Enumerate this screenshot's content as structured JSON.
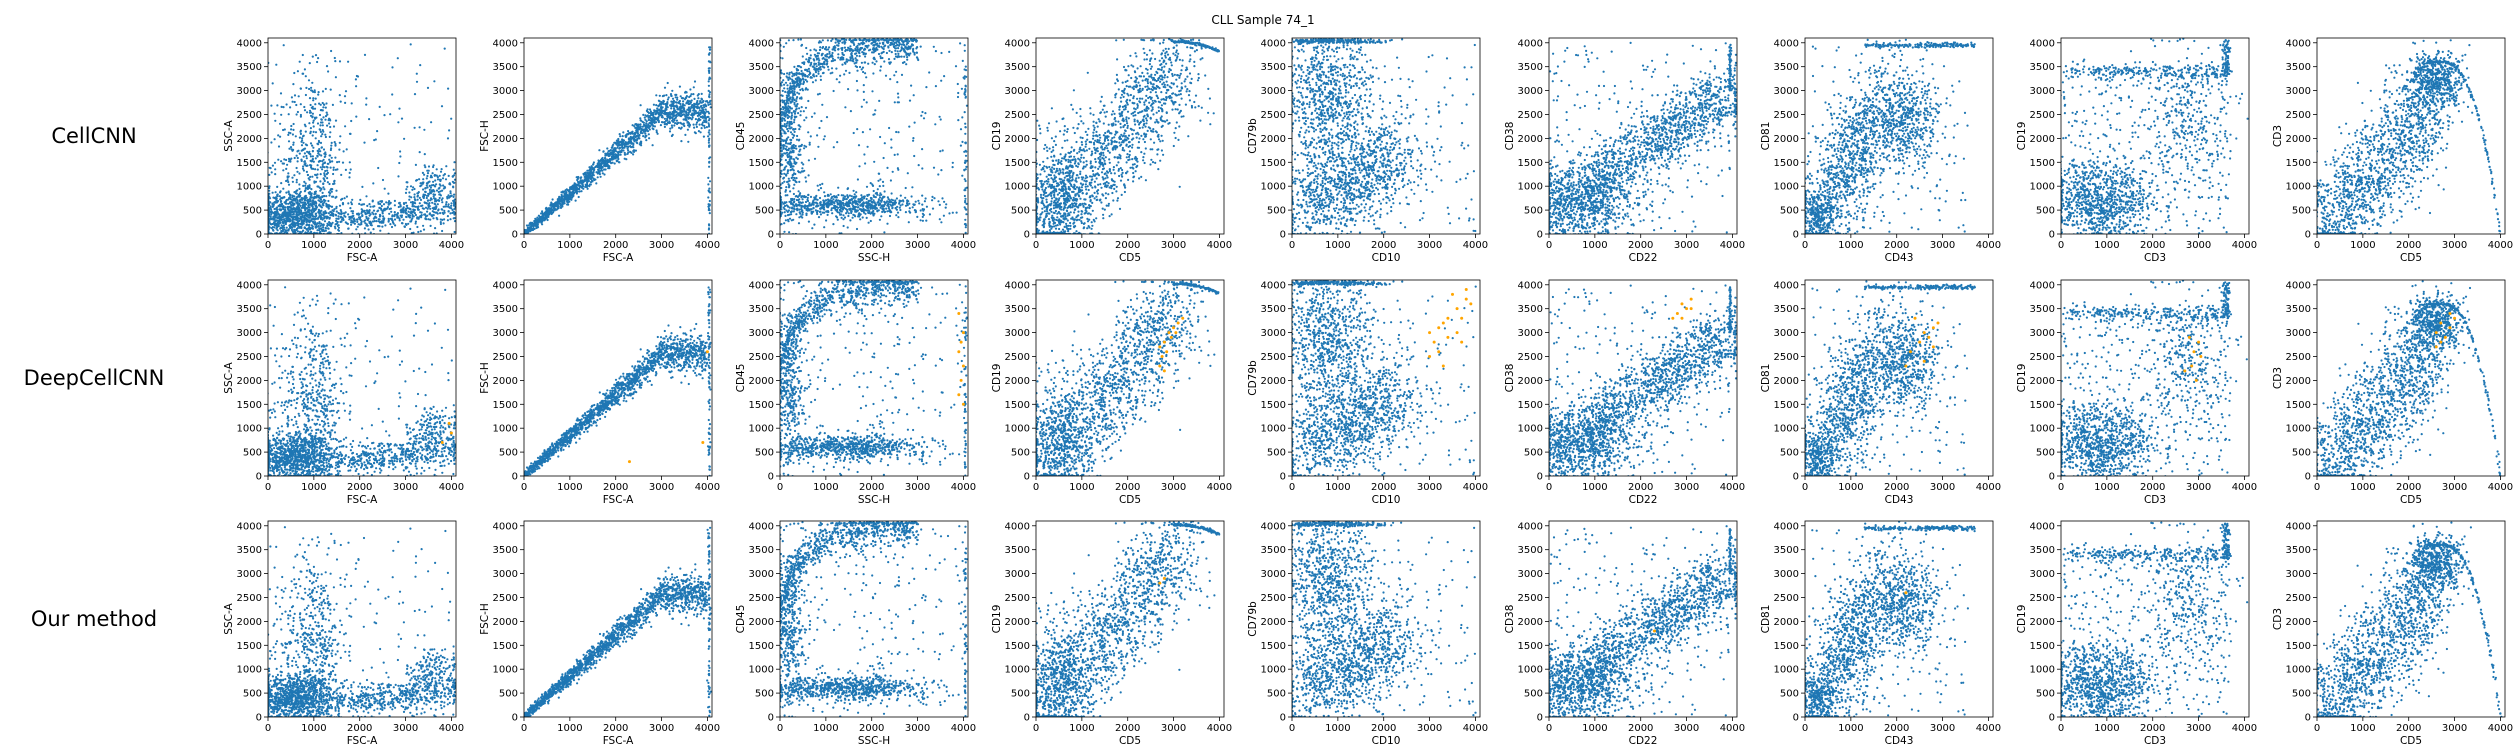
{
  "title": "CLL Sample 74_1",
  "row_labels": [
    "CellCNN",
    "DeepCellCNN",
    "Our method"
  ],
  "colors": {
    "points": "#1f77b4",
    "highlight": "#ffa500"
  },
  "chart_data": {
    "type": "scatter",
    "grid": false,
    "axis_range": [
      0,
      4100
    ],
    "x_ticks": [
      0,
      1000,
      2000,
      3000,
      4000
    ],
    "y_ticks": [
      0,
      500,
      1000,
      1500,
      2000,
      2500,
      3000,
      3500,
      4000
    ],
    "panels": [
      {
        "xlabel": "FSC-A",
        "ylabel": "SSC-A",
        "pattern": "fsc-ssc"
      },
      {
        "xlabel": "FSC-A",
        "ylabel": "FSC-H",
        "pattern": "diagonal"
      },
      {
        "xlabel": "SSC-H",
        "ylabel": "CD45",
        "pattern": "ssc-cd45"
      },
      {
        "xlabel": "CD5",
        "ylabel": "CD19",
        "pattern": "cd5-cd19"
      },
      {
        "xlabel": "CD10",
        "ylabel": "CD79b",
        "pattern": "cd10-cd79b"
      },
      {
        "xlabel": "CD22",
        "ylabel": "CD38",
        "pattern": "cd22-cd38"
      },
      {
        "xlabel": "CD43",
        "ylabel": "CD81",
        "pattern": "cd43-cd81"
      },
      {
        "xlabel": "CD3",
        "ylabel": "CD19",
        "pattern": "cd3-cd19"
      },
      {
        "xlabel": "CD5",
        "ylabel": "CD3",
        "pattern": "cd5-cd3"
      }
    ],
    "highlighted_cells": [
      [],
      [
        {
          "panel": 0,
          "points": [
            [
              4000,
              900
            ],
            [
              3950,
              1100
            ],
            [
              3800,
              700
            ]
          ]
        },
        {
          "panel": 1,
          "points": [
            [
              2300,
              300
            ],
            [
              3900,
              700
            ],
            [
              4000,
              2600
            ]
          ]
        },
        {
          "panel": 2,
          "points": [
            [
              3900,
              3400
            ],
            [
              4000,
              3000
            ],
            [
              3950,
              2800
            ],
            [
              3900,
              2600
            ],
            [
              4000,
              2300
            ],
            [
              3950,
              2000
            ],
            [
              3900,
              1700
            ],
            [
              4000,
              1500
            ]
          ]
        },
        {
          "panel": 3,
          "points": [
            [
              2700,
              2700
            ],
            [
              2800,
              2800
            ],
            [
              2750,
              2500
            ],
            [
              2900,
              3000
            ],
            [
              3000,
              3100
            ],
            [
              3100,
              3200
            ],
            [
              2850,
              2600
            ],
            [
              2950,
              2900
            ],
            [
              3050,
              3000
            ],
            [
              2800,
              2200
            ],
            [
              2700,
              2300
            ],
            [
              3200,
              3300
            ]
          ]
        },
        {
          "panel": 4,
          "points": [
            [
              3000,
              3000
            ],
            [
              3200,
              3100
            ],
            [
              3400,
              3300
            ],
            [
              3600,
              3500
            ],
            [
              3800,
              3700
            ],
            [
              3100,
              2800
            ],
            [
              3300,
              3200
            ],
            [
              3500,
              3800
            ],
            [
              3700,
              3300
            ],
            [
              3900,
              3600
            ],
            [
              3200,
              2600
            ],
            [
              3400,
              2900
            ],
            [
              3600,
              3000
            ],
            [
              3800,
              3900
            ],
            [
              3000,
              2500
            ],
            [
              3300,
              2300
            ],
            [
              3700,
              2800
            ]
          ]
        },
        {
          "panel": 5,
          "points": [
            [
              2800,
              3400
            ],
            [
              2900,
              3600
            ],
            [
              3000,
              3500
            ],
            [
              3100,
              3700
            ],
            [
              2900,
              3300
            ],
            [
              3100,
              3500
            ],
            [
              2700,
              3300
            ]
          ]
        },
        {
          "panel": 6,
          "points": [
            [
              2400,
              3300
            ],
            [
              2600,
              3000
            ],
            [
              2800,
              3100
            ],
            [
              2500,
              2800
            ],
            [
              2700,
              2900
            ],
            [
              2900,
              3200
            ],
            [
              2300,
              2600
            ],
            [
              2600,
              2400
            ],
            [
              2800,
              2700
            ],
            [
              2200,
              2300
            ]
          ]
        },
        {
          "panel": 7,
          "points": [
            [
              2800,
              2900
            ],
            [
              2900,
              2600
            ],
            [
              3000,
              2800
            ],
            [
              2850,
              2300
            ],
            [
              2950,
              2000
            ],
            [
              2700,
              2200
            ],
            [
              3050,
              2500
            ]
          ]
        },
        {
          "panel": 8,
          "points": [
            [
              2600,
              3000
            ],
            [
              2700,
              3200
            ],
            [
              2800,
              2900
            ],
            [
              2900,
              3100
            ],
            [
              3000,
              3300
            ],
            [
              2700,
              2800
            ],
            [
              2900,
              3400
            ],
            [
              2600,
              2700
            ]
          ]
        }
      ],
      [
        {
          "panel": 3,
          "points": [
            [
              2700,
              2800
            ],
            [
              2800,
              2900
            ]
          ]
        },
        {
          "panel": 5,
          "points": [
            [
              2300,
              1800
            ]
          ]
        },
        {
          "panel": 6,
          "points": [
            [
              2200,
              2600
            ]
          ]
        }
      ]
    ]
  }
}
